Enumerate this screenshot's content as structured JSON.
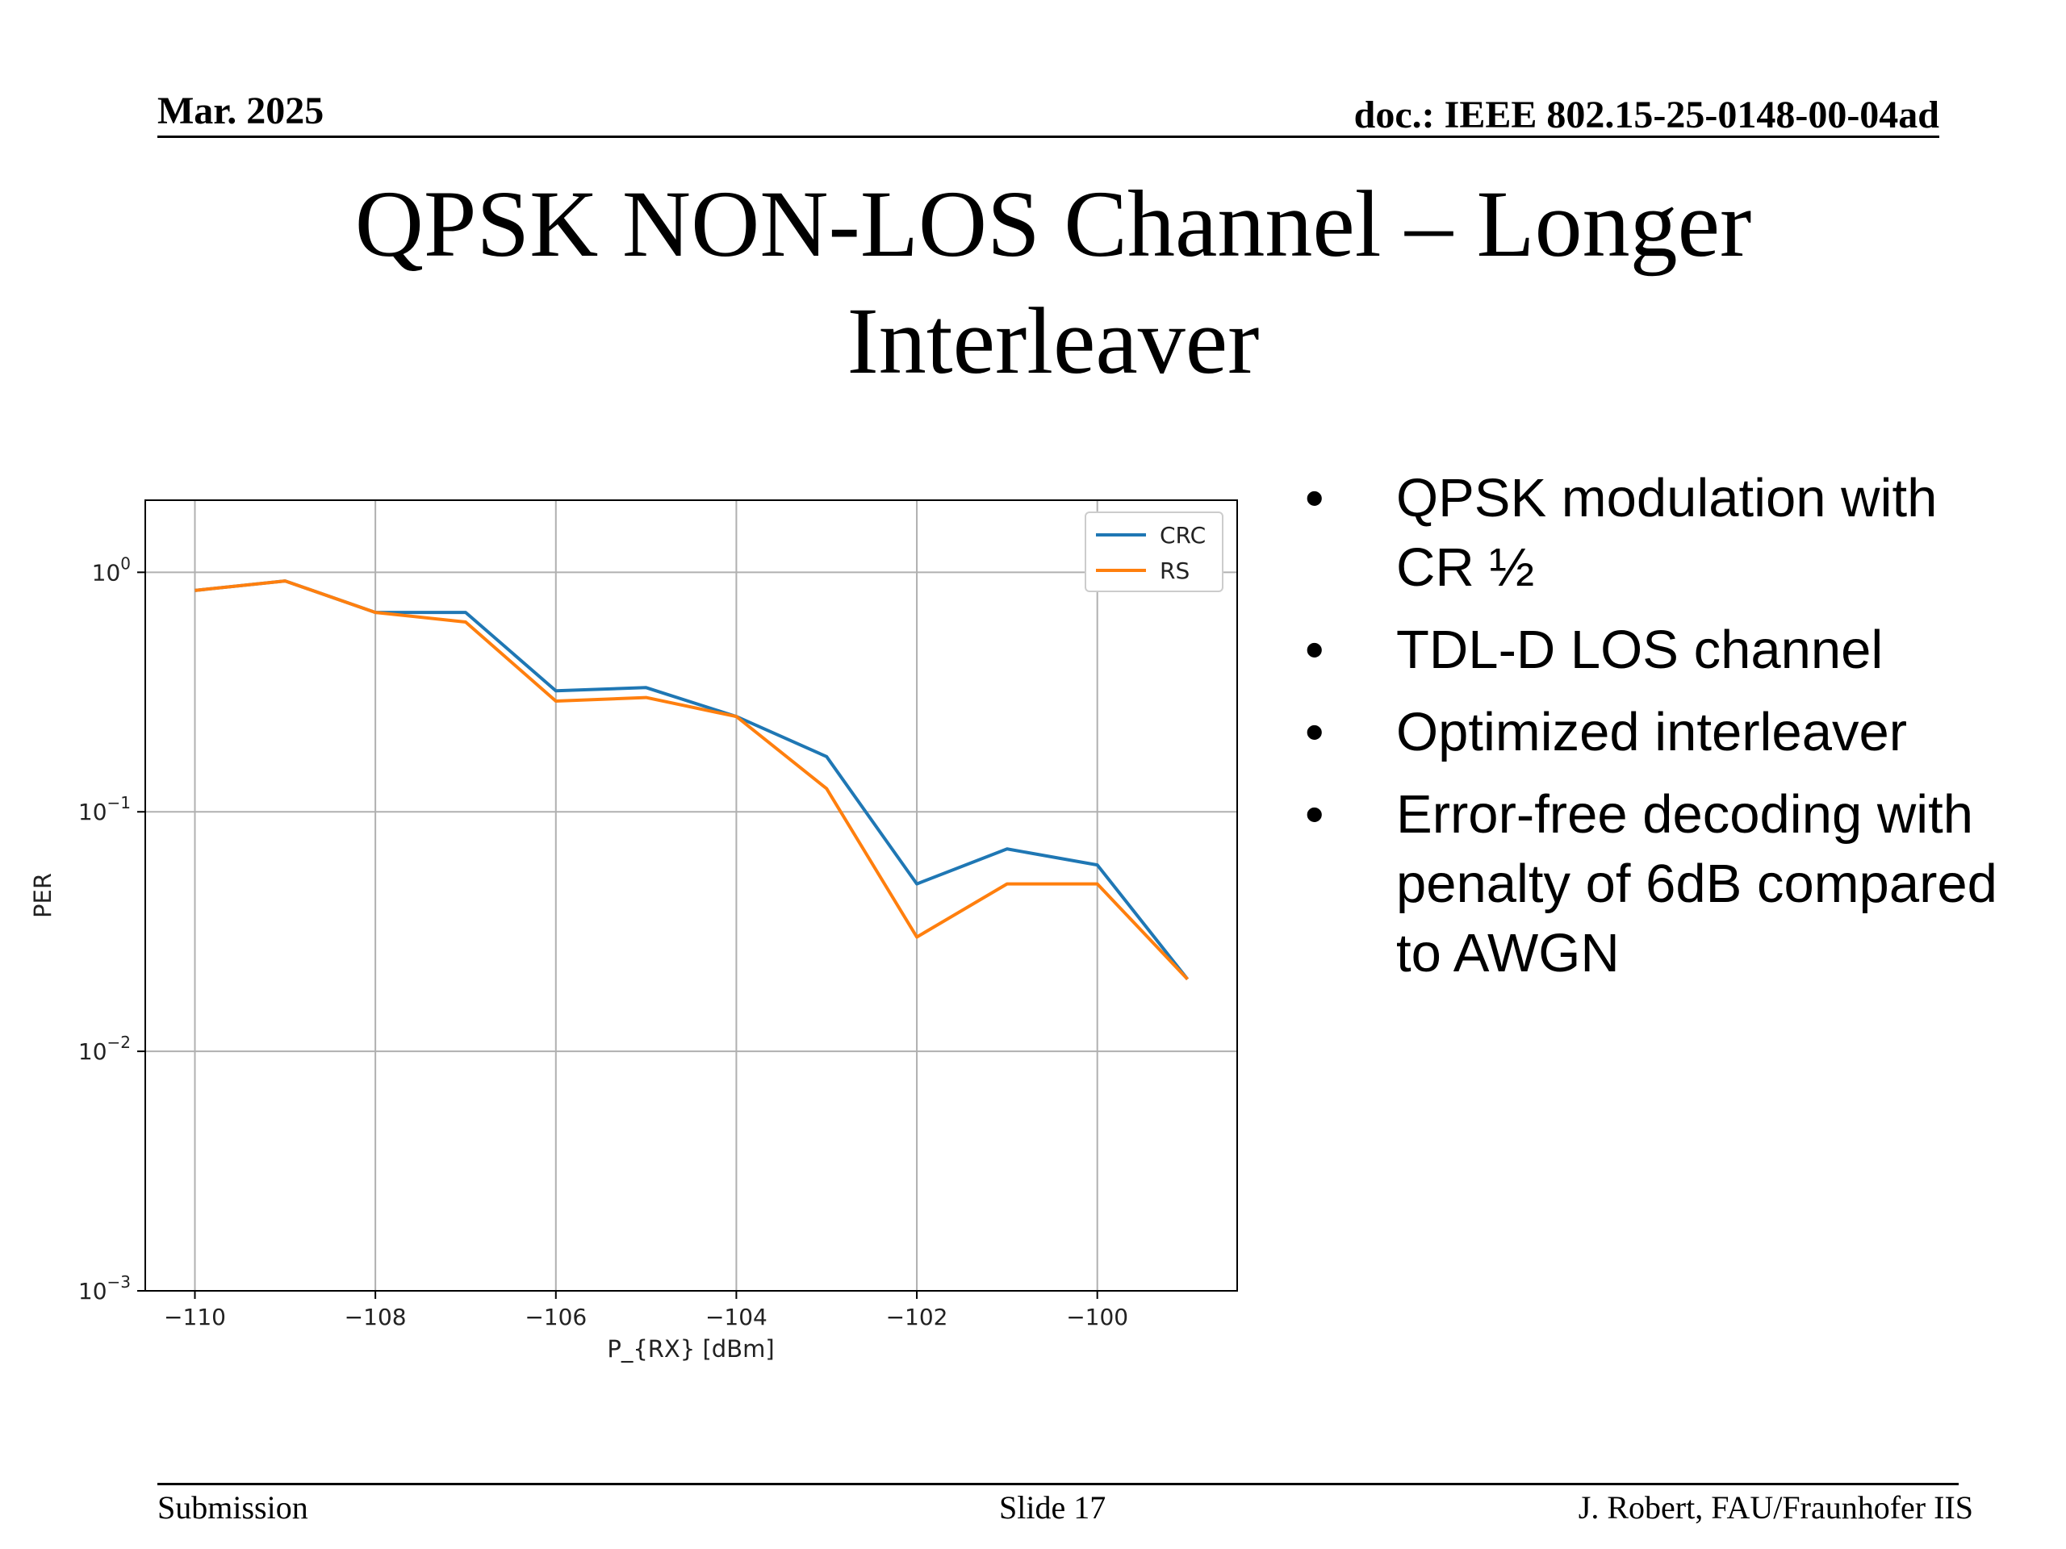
{
  "header": {
    "date": "Mar. 2025",
    "doc": "doc.: IEEE 802.15-25-0148-00-04ad"
  },
  "slide": {
    "title": "QPSK NON-LOS Channel – Longer Interleaver",
    "bullets": [
      "QPSK modulation with CR ½",
      "TDL-D LOS channel",
      "Optimized interleaver",
      "Error-free decoding with penalty of 6dB compared to AWGN"
    ],
    "bullet_symbol": "•"
  },
  "footer": {
    "left": "Submission",
    "center": "Slide 17",
    "right": "J. Robert, FAU/Fraunhofer IIS"
  },
  "chart_data": {
    "type": "line",
    "x": [
      -110,
      -109,
      -108,
      -107,
      -106,
      -105,
      -104,
      -103,
      -102,
      -101,
      -100,
      -99
    ],
    "series": [
      {
        "name": "CRC",
        "color": "#1f77b4",
        "values": [
          0.84,
          0.92,
          0.68,
          0.68,
          0.32,
          0.33,
          0.25,
          0.17,
          0.05,
          0.07,
          0.06,
          0.02
        ]
      },
      {
        "name": "RS",
        "color": "#ff7f0e",
        "values": [
          0.84,
          0.92,
          0.68,
          0.62,
          0.29,
          0.3,
          0.25,
          0.125,
          0.03,
          0.05,
          0.05,
          0.02
        ]
      }
    ],
    "xlabel": "P_{RX} [dBm]",
    "ylabel": "PER",
    "xlim": [
      -110.55,
      -98.45
    ],
    "ylim": [
      0.001,
      2
    ],
    "yscale": "log",
    "xticks": [
      -110,
      -108,
      -106,
      -104,
      -102,
      -100
    ],
    "xtick_labels": [
      "−110",
      "−108",
      "−106",
      "−104",
      "−102",
      "−100"
    ],
    "yticks": [
      {
        "value": 1,
        "base": "10",
        "exp": "0"
      },
      {
        "value": 0.1,
        "base": "10",
        "exp": "−1"
      },
      {
        "value": 0.01,
        "base": "10",
        "exp": "−2"
      },
      {
        "value": 0.001,
        "base": "10",
        "exp": "−3"
      }
    ],
    "grid": true,
    "legend_position": "upper right"
  }
}
